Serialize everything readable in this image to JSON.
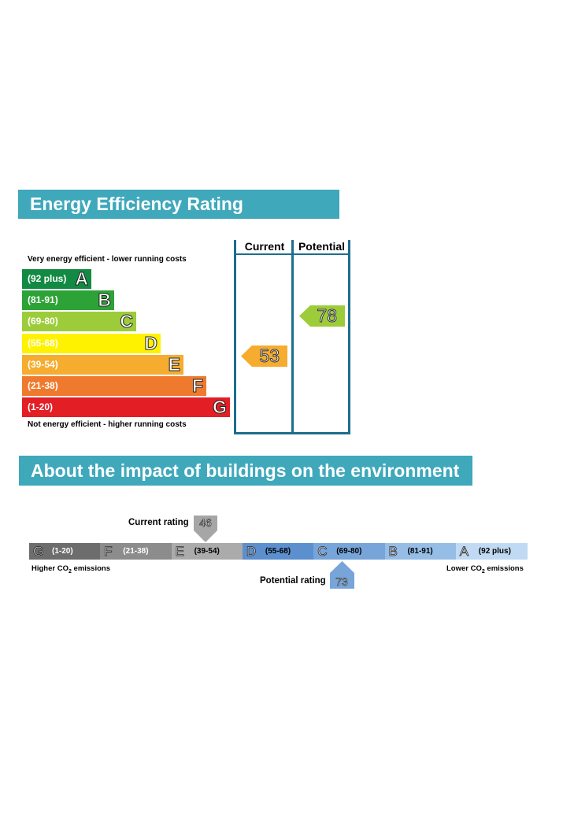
{
  "energy": {
    "title": "Energy Efficiency Rating",
    "columns": [
      "Current",
      "Potential"
    ],
    "top_note": "Very energy efficient - lower running costs",
    "bottom_note": "Not energy efficient - higher running costs",
    "bands": [
      {
        "range": "(92 plus)",
        "letter": "A",
        "color": "#138a43"
      },
      {
        "range": "(81-91)",
        "letter": "B",
        "color": "#2da337"
      },
      {
        "range": "(69-80)",
        "letter": "C",
        "color": "#9dcc3b"
      },
      {
        "range": "(55-68)",
        "letter": "D",
        "color": "#fff200"
      },
      {
        "range": "(39-54)",
        "letter": "E",
        "color": "#f6ac2f"
      },
      {
        "range": "(21-38)",
        "letter": "F",
        "color": "#ef7a2d"
      },
      {
        "range": "(1-20)",
        "letter": "G",
        "color": "#e31e25"
      }
    ],
    "current": {
      "value": "53",
      "band": "E",
      "color": "#f6ac2f"
    },
    "potential": {
      "value": "78",
      "band": "C",
      "color": "#9dcc3b"
    }
  },
  "environment": {
    "title": "About the impact of buildings on the environment",
    "segments": [
      {
        "letter": "G",
        "range": "(1-20)",
        "color": "#6d6d6d"
      },
      {
        "letter": "F",
        "range": "(21-38)",
        "color": "#8c8c8c"
      },
      {
        "letter": "E",
        "range": "(39-54)",
        "color": "#ababab"
      },
      {
        "letter": "D",
        "range": "(55-68)",
        "color": "#5b8fcd"
      },
      {
        "letter": "C",
        "range": "(69-80)",
        "color": "#77a5d9"
      },
      {
        "letter": "B",
        "range": "(81-91)",
        "color": "#96bde6"
      },
      {
        "letter": "A",
        "range": "(92 plus)",
        "color": "#c1daf3"
      }
    ],
    "current_label": "Current rating",
    "current_value": "46",
    "potential_label": "Potential rating",
    "potential_value": "73",
    "left_note": "Higher CO",
    "right_note": "Lower CO",
    "note_suffix": " emissions",
    "subscript": "2"
  }
}
